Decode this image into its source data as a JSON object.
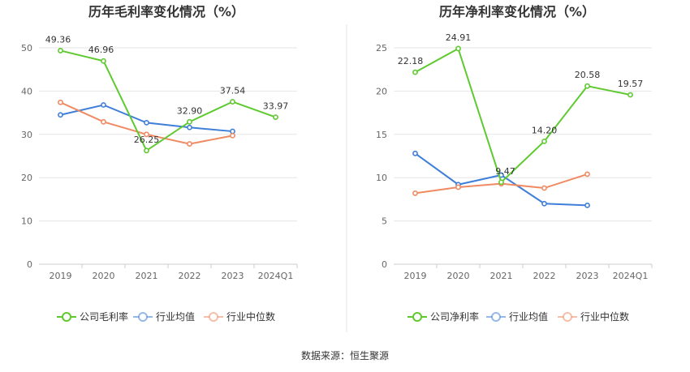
{
  "source_text": "数据来源：恒生聚源",
  "colors": {
    "company": "#5fc930",
    "industry_avg": "#3f7fd9",
    "industry_median": "#f08a62",
    "grid": "#e6e6e6",
    "divider": "#e3e3e3"
  },
  "chart_data": [
    {
      "type": "line",
      "title": "历年毛利率变化情况（%）",
      "categories": [
        "2019",
        "2020",
        "2021",
        "2022",
        "2023",
        "2024Q1"
      ],
      "ylim": [
        0,
        50
      ],
      "yticks": [
        0,
        10,
        20,
        30,
        40,
        50
      ],
      "grid": true,
      "legend_position": "bottom",
      "series": [
        {
          "name": "公司毛利率",
          "color_key": "company",
          "values": [
            49.36,
            46.96,
            26.25,
            32.9,
            37.54,
            33.97
          ],
          "labels": [
            "49.36",
            "46.96",
            "26.25",
            "32.90",
            "37.54",
            "33.97"
          ]
        },
        {
          "name": "行业均值",
          "color_key": "industry_avg",
          "values": [
            34.5,
            36.8,
            32.7,
            31.6,
            30.7,
            null
          ]
        },
        {
          "name": "行业中位数",
          "color_key": "industry_median",
          "values": [
            37.4,
            32.9,
            30.0,
            27.8,
            29.7,
            null
          ]
        }
      ]
    },
    {
      "type": "line",
      "title": "历年净利率变化情况（%）",
      "categories": [
        "2019",
        "2020",
        "2021",
        "2022",
        "2023",
        "2024Q1"
      ],
      "ylim": [
        0,
        25
      ],
      "yticks": [
        0,
        5,
        10,
        15,
        20,
        25
      ],
      "grid": true,
      "legend_position": "bottom",
      "series": [
        {
          "name": "公司净利率",
          "color_key": "company",
          "values": [
            22.18,
            24.91,
            9.47,
            14.2,
            20.58,
            19.57
          ],
          "labels": [
            "22.18",
            "24.91",
            "9.47",
            "14.20",
            "20.58",
            "19.57"
          ]
        },
        {
          "name": "行业均值",
          "color_key": "industry_avg",
          "values": [
            12.8,
            9.2,
            10.3,
            7.0,
            6.8,
            null
          ]
        },
        {
          "name": "行业中位数",
          "color_key": "industry_median",
          "values": [
            8.2,
            8.9,
            9.3,
            8.8,
            10.4,
            null
          ]
        }
      ]
    }
  ]
}
